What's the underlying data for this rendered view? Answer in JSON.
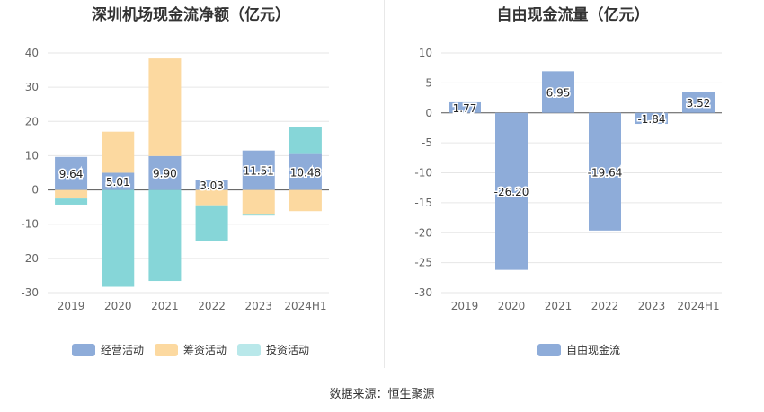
{
  "footer": "数据来源：恒生聚源",
  "colors": {
    "operating": "#8eacd9",
    "financing": "#fcd9a0",
    "investing": "#86d6d8",
    "fcf": "#8eacd9"
  },
  "chart_data": [
    {
      "type": "bar",
      "stacked": true,
      "title": "深圳机场现金流净额（亿元）",
      "categories": [
        "2019",
        "2020",
        "2021",
        "2022",
        "2023",
        "2024H1"
      ],
      "ylim": [
        -30,
        40
      ],
      "yticks": [
        40,
        30,
        20,
        10,
        0,
        -10,
        -20,
        -30
      ],
      "grid": true,
      "legend_position": "bottom",
      "series": [
        {
          "name": "经营活动",
          "values": [
            9.64,
            5.01,
            9.9,
            3.03,
            11.51,
            10.48
          ],
          "labels": [
            "9.64",
            "5.01",
            "9.90",
            "3.03",
            "11.51",
            "10.48"
          ]
        },
        {
          "name": "筹资活动",
          "values": [
            -2.5,
            12.0,
            28.5,
            -4.5,
            -7.0,
            -6.2
          ]
        },
        {
          "name": "投资活动",
          "values": [
            -1.8,
            -28.3,
            -26.6,
            -10.5,
            -0.5,
            8.0
          ]
        }
      ]
    },
    {
      "type": "bar",
      "title": "自由现金流量（亿元）",
      "categories": [
        "2019",
        "2020",
        "2021",
        "2022",
        "2023",
        "2024H1"
      ],
      "ylim": [
        -30,
        10
      ],
      "yticks": [
        10,
        5,
        0,
        -5,
        -10,
        -15,
        -20,
        -25,
        -30
      ],
      "grid": true,
      "legend_position": "bottom",
      "series": [
        {
          "name": "自由现金流",
          "values": [
            1.77,
            -26.2,
            6.95,
            -19.64,
            -1.84,
            3.52
          ],
          "labels": [
            "1.77",
            "-26.20",
            "6.95",
            "-19.64",
            "-1.84",
            "3.52"
          ]
        }
      ]
    }
  ]
}
